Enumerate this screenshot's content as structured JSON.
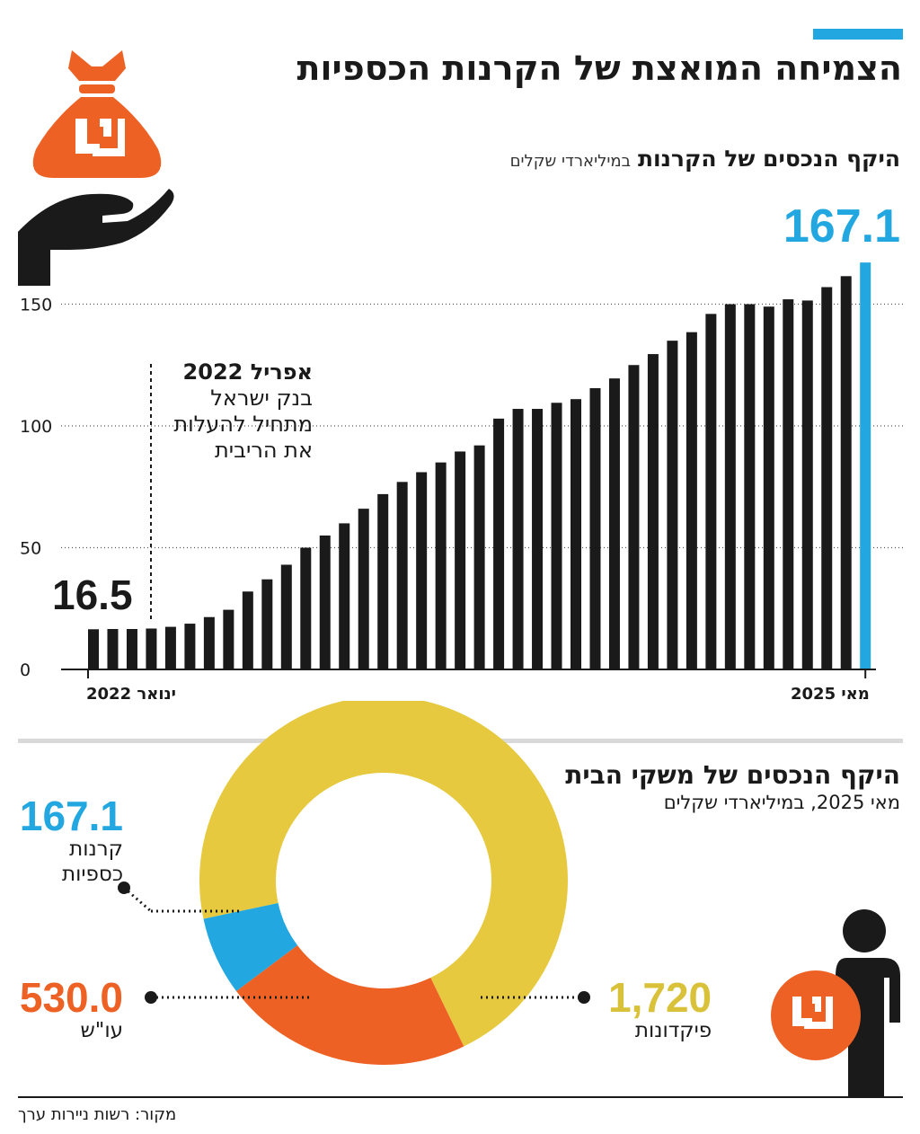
{
  "title": "הצמיחה המואצת של הקרנות הכספיות",
  "chart1": {
    "subtitle_bold": "היקף הנכסים של הקרנות",
    "subtitle_unit": "במיליארדי שקלים",
    "end_value_label": "167.1",
    "start_value_label": "16.5",
    "annotation_title": "אפריל 2022",
    "annotation_text": "בנק ישראל מתחיל להעלות את הריבית",
    "x_start_label": "ינואר 2022",
    "x_end_label": "מאי 2025"
  },
  "chart2": {
    "subtitle": "היקף הנכסים של משקי הבית",
    "subtitle_unit": "מאי 2025, במיליארדי שקלים",
    "funds_value": "167.1",
    "funds_name": "קרנות כספיות",
    "osh_value": "530.0",
    "osh_name": "עו\"ש",
    "deposits_value": "1,720",
    "deposits_name": "פיקדונות"
  },
  "source": "מקור: רשות ניירות ערך",
  "colors": {
    "bar": "#1a1a1a",
    "highlight": "#22a7e0",
    "orange": "#ee6125",
    "yellow": "#e6c93e",
    "grid": "#555555"
  },
  "icons": [
    "money-bag-hand-icon",
    "person-shekel-icon",
    "shekel-icon"
  ],
  "chart_data": [
    {
      "type": "bar",
      "subtitle": "היקף הנכסים של הקרנות במיליארדי שקלים",
      "ylim": [
        0,
        170
      ],
      "yticks": [
        0,
        50,
        100,
        150
      ],
      "grid": true,
      "x_start": "ינואר 2022",
      "x_end": "מאי 2025",
      "values": [
        16.5,
        16.6,
        16.6,
        16.8,
        17.5,
        18.8,
        21.5,
        24.5,
        32,
        37,
        43,
        50,
        55,
        60,
        66,
        72,
        77,
        81,
        85,
        89.5,
        92,
        103,
        107,
        107,
        109.5,
        111,
        115.5,
        119.5,
        125,
        129.5,
        135,
        138.5,
        146,
        150,
        150,
        149,
        152,
        151.5,
        157,
        161.5,
        167.1
      ],
      "highlight_last": true
    },
    {
      "type": "pie",
      "subtitle": "היקף הנכסים של משקי הבית, מאי 2025, במיליארדי שקלים",
      "labels": [
        "פיקדונות",
        "עו\"ש",
        "קרנות כספיות"
      ],
      "values": [
        1720,
        530.0,
        167.1
      ]
    }
  ]
}
